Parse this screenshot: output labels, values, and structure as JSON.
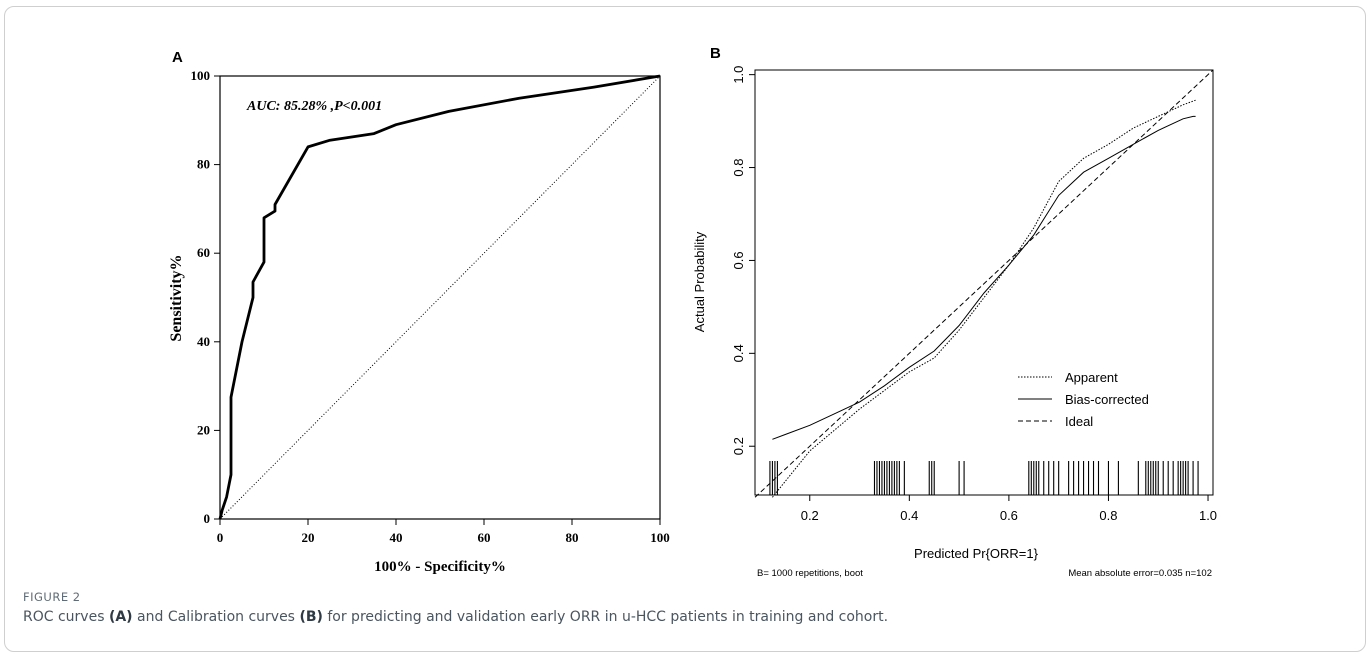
{
  "caption": {
    "label": "FIGURE 2",
    "text_parts": [
      "ROC curves ",
      "(A)",
      " and Calibration curves ",
      "(B)",
      " for predicting and validation early ORR in u-HCC patients in training and cohort."
    ]
  },
  "chart_data": [
    {
      "panel": "A",
      "type": "line",
      "xlabel": "100% - Specificity%",
      "ylabel": "Sensitivity%",
      "xlim": [
        0,
        100
      ],
      "ylim": [
        0,
        100
      ],
      "xticks": [
        "0",
        "20",
        "40",
        "60",
        "80",
        "100"
      ],
      "yticks": [
        "0",
        "20",
        "40",
        "60",
        "80",
        "100"
      ],
      "annotation": "AUC: 85.28% ,P<0.001",
      "grid": false,
      "series": [
        {
          "style": "solid-thick",
          "x": [
            0,
            0.5,
            1.5,
            2.5,
            2.5,
            5,
            7.5,
            7.5,
            10,
            10,
            12.5,
            12.5,
            20,
            25,
            35,
            40,
            52,
            68,
            85,
            100
          ],
          "y": [
            0,
            2,
            5,
            10,
            27.5,
            40,
            50,
            53.5,
            58,
            68,
            69.5,
            71,
            84,
            85.5,
            87,
            89,
            92,
            95,
            97.5,
            100
          ]
        },
        {
          "style": "dotted",
          "x": [
            0,
            100
          ],
          "y": [
            0,
            100
          ]
        }
      ]
    },
    {
      "panel": "B",
      "type": "line",
      "xlabel": "Predicted Pr{ORR=1}",
      "ylabel": "Actual Probability",
      "xlim": [
        0.09,
        1.01
      ],
      "ylim": [
        0.095,
        1.01
      ],
      "xticks": [
        "0.2",
        "0.4",
        "0.6",
        "0.8",
        "1.0"
      ],
      "yticks": [
        "0.2",
        "0.4",
        "0.6",
        "0.8",
        "1.0"
      ],
      "footnote_left": "B= 1000 repetitions, boot",
      "footnote_right": "Mean absolute error=0.035 n=102",
      "legend_position": "bottom-right",
      "grid": false,
      "series": [
        {
          "name": "Apparent",
          "style": "dotted",
          "x": [
            0.125,
            0.2,
            0.3,
            0.4,
            0.45,
            0.5,
            0.55,
            0.6,
            0.65,
            0.7,
            0.75,
            0.8,
            0.85,
            0.9,
            0.95,
            0.975
          ],
          "y": [
            0.09,
            0.19,
            0.28,
            0.36,
            0.39,
            0.45,
            0.52,
            0.59,
            0.67,
            0.77,
            0.82,
            0.85,
            0.885,
            0.91,
            0.935,
            0.945
          ]
        },
        {
          "name": "Bias-corrected",
          "style": "solid",
          "x": [
            0.125,
            0.15,
            0.2,
            0.25,
            0.3,
            0.35,
            0.4,
            0.45,
            0.5,
            0.55,
            0.6,
            0.65,
            0.7,
            0.75,
            0.8,
            0.85,
            0.9,
            0.95,
            0.97,
            0.975
          ],
          "y": [
            0.215,
            0.225,
            0.245,
            0.27,
            0.295,
            0.33,
            0.37,
            0.405,
            0.46,
            0.53,
            0.59,
            0.655,
            0.74,
            0.79,
            0.82,
            0.85,
            0.88,
            0.905,
            0.91,
            0.91
          ]
        },
        {
          "name": "Ideal",
          "style": "dashed",
          "x": [
            0.09,
            1.01
          ],
          "y": [
            0.09,
            1.01
          ]
        }
      ],
      "rug_x": [
        0.12,
        0.125,
        0.13,
        0.135,
        0.33,
        0.335,
        0.34,
        0.345,
        0.35,
        0.355,
        0.36,
        0.365,
        0.37,
        0.375,
        0.38,
        0.39,
        0.44,
        0.445,
        0.45,
        0.5,
        0.51,
        0.64,
        0.645,
        0.65,
        0.655,
        0.66,
        0.67,
        0.68,
        0.69,
        0.7,
        0.72,
        0.73,
        0.74,
        0.75,
        0.76,
        0.77,
        0.78,
        0.8,
        0.82,
        0.86,
        0.875,
        0.88,
        0.885,
        0.89,
        0.895,
        0.9,
        0.91,
        0.92,
        0.93,
        0.94,
        0.945,
        0.95,
        0.955,
        0.96,
        0.97,
        0.98
      ]
    }
  ]
}
